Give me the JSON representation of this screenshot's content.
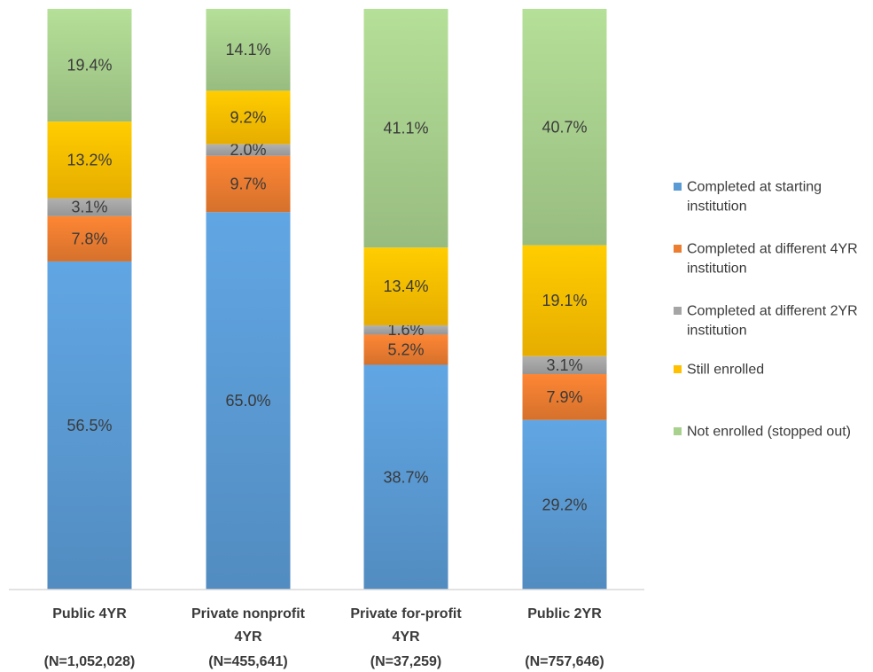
{
  "chart_data": {
    "type": "bar",
    "stacked": true,
    "normalized_100": true,
    "categories": [
      [
        "Public 4YR",
        "",
        "(N=1,052,028)"
      ],
      [
        "Private nonprofit",
        "4YR",
        "(N=455,641)"
      ],
      [
        "Private for-profit",
        "4YR",
        "(N=37,259)"
      ],
      [
        "Public 2YR",
        "",
        "(N=757,646)"
      ]
    ],
    "series": [
      {
        "name": "Completed at starting institution",
        "legend_lines": [
          "Completed at starting",
          "institution"
        ],
        "color": "#5b9bd5",
        "values": [
          56.5,
          65.0,
          38.7,
          29.2
        ],
        "labels": [
          "56.5%",
          "65.0%",
          "38.7%",
          "29.2%"
        ]
      },
      {
        "name": "Completed at different 4YR institution",
        "legend_lines": [
          "Completed at different 4YR",
          "institution"
        ],
        "color": "#ed7d31",
        "values": [
          7.8,
          9.7,
          5.2,
          7.9
        ],
        "labels": [
          "7.8%",
          "9.7%",
          "5.2%",
          "7.9%"
        ]
      },
      {
        "name": "Completed at different 2YR institution",
        "legend_lines": [
          "Completed at different 2YR",
          "institution"
        ],
        "color": "#a5a5a5",
        "values": [
          3.1,
          2.0,
          1.6,
          3.1
        ],
        "labels": [
          "3.1%",
          "2.0%",
          "1.6%",
          "3.1%"
        ]
      },
      {
        "name": "Still enrolled",
        "legend_lines": [
          "Still enrolled"
        ],
        "color": "#ffc000",
        "values": [
          13.2,
          9.2,
          13.4,
          19.1
        ],
        "labels": [
          "13.2%",
          "9.2%",
          "13.4%",
          "19.1%"
        ]
      },
      {
        "name": "Not enrolled (stopped out)",
        "legend_lines": [
          "Not enrolled (stopped out)"
        ],
        "color": "#a9d18e",
        "values": [
          19.4,
          14.1,
          41.1,
          40.7
        ],
        "labels": [
          "19.4%",
          "14.1%",
          "41.1%",
          "40.7%"
        ]
      }
    ],
    "ylim": [
      0,
      100
    ],
    "grid": false,
    "legend_position": "right"
  }
}
